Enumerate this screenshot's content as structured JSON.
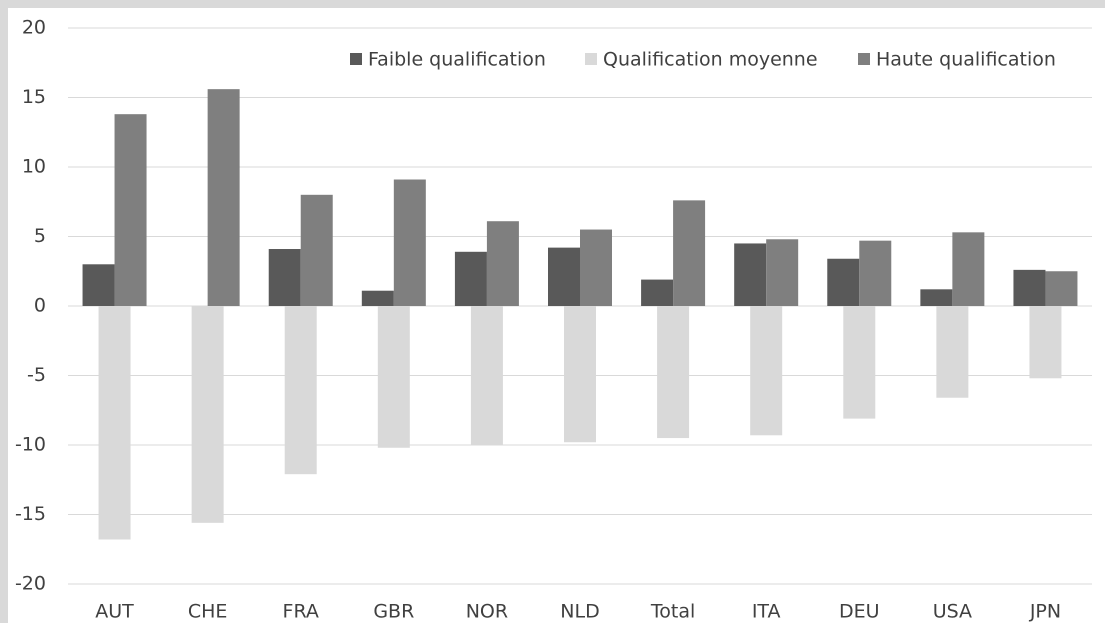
{
  "chart_data": {
    "type": "bar",
    "categories": [
      "AUT",
      "CHE",
      "FRA",
      "GBR",
      "NOR",
      "NLD",
      "Total",
      "ITA",
      "DEU",
      "USA",
      "JPN"
    ],
    "series": [
      {
        "name": "Faible qualification",
        "color": "#595959",
        "values": [
          3.0,
          0,
          4.1,
          1.1,
          3.9,
          4.2,
          1.9,
          4.5,
          3.4,
          1.2,
          2.6
        ]
      },
      {
        "name": "Qualification moyenne",
        "color": "#d9d9d9",
        "values": [
          -16.8,
          -15.6,
          -12.1,
          -10.2,
          -10.0,
          -9.8,
          -9.5,
          -9.3,
          -8.1,
          -6.6,
          -5.2
        ]
      },
      {
        "name": "Haute qualification",
        "color": "#7f7f7f",
        "values": [
          13.8,
          15.6,
          8.0,
          9.1,
          6.1,
          5.5,
          7.6,
          4.8,
          4.7,
          5.3,
          2.5
        ]
      }
    ],
    "ylim": [
      -20,
      20
    ],
    "yticks": [
      -20,
      -15,
      -10,
      -5,
      0,
      5,
      10,
      15,
      20
    ],
    "grid": true,
    "legend": "top-right"
  }
}
